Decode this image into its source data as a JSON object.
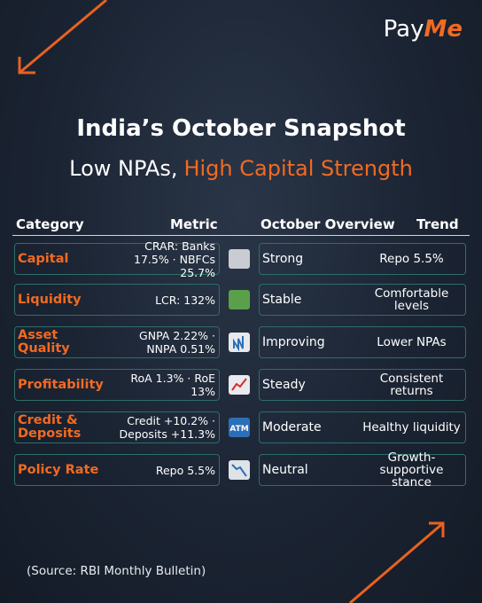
{
  "brand": {
    "part1": "Pay",
    "part2": "Me"
  },
  "header": {
    "title": "India’s October Snapshot",
    "subtitle_plain": "Low NPAs,",
    "subtitle_highlight": "High Capital Strength"
  },
  "table": {
    "columns": [
      "Category",
      "Metric",
      "October Overview",
      "Trend"
    ],
    "rows": [
      {
        "category": "Capital",
        "metric": "CRAR: Banks 17.5% · NBFCs 25.7%",
        "overview": "Strong",
        "trend": "Repo 5.5%"
      },
      {
        "category": "Liquidity",
        "metric": "LCR: 132%",
        "overview": "Stable",
        "trend": "Comfortable levels"
      },
      {
        "category": "Asset Quality",
        "metric": "GNPA 2.22% · NNPA 0.51%",
        "overview": "Improving",
        "trend": "Lower NPAs"
      },
      {
        "category": "Profitability",
        "metric": "RoA 1.3% · RoE 13%",
        "overview": "Steady",
        "trend": "Consistent returns"
      },
      {
        "category": "Credit & Deposits",
        "metric": "Credit +10.2% · Deposits +11.3%",
        "overview": "Moderate",
        "trend": "Healthy liquidity",
        "icon_label": "ATM"
      },
      {
        "category": "Policy Rate",
        "metric": "Repo 5.5%",
        "overview": "Neutral",
        "trend": "Growth-supportive stance"
      }
    ]
  },
  "source": "(Source:  RBI Monthly Bulletin)"
}
